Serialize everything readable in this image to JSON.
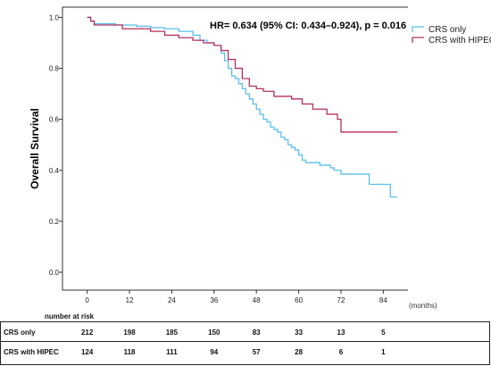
{
  "chart_data": {
    "type": "line",
    "subtype": "kaplan-meier",
    "ylabel": "Overall Survival",
    "x_unit_label": "(months)",
    "xlim": [
      -7,
      91
    ],
    "ylim": [
      -0.07,
      1.04
    ],
    "x_ticks": [
      0,
      12,
      24,
      36,
      48,
      60,
      72,
      84
    ],
    "y_ticks": [
      0.0,
      0.2,
      0.4,
      0.6,
      0.8,
      1.0
    ],
    "y_tick_labels": [
      "0.0",
      "0.2",
      "0.4",
      "0.6",
      "0.8",
      "1.0"
    ],
    "annotation": "HR= 0.634 (95% CI: 0.434–0.924), p = 0.016",
    "legend_position": "top-right",
    "series": [
      {
        "name": "CRS only",
        "color": "#5bc0eb",
        "steps": [
          [
            0,
            1.0
          ],
          [
            1,
            0.985
          ],
          [
            2,
            0.975
          ],
          [
            8,
            0.97
          ],
          [
            14,
            0.965
          ],
          [
            18,
            0.96
          ],
          [
            22,
            0.955
          ],
          [
            26,
            0.945
          ],
          [
            30,
            0.93
          ],
          [
            32,
            0.91
          ],
          [
            34,
            0.9
          ],
          [
            36,
            0.89
          ],
          [
            38,
            0.86
          ],
          [
            39,
            0.83
          ],
          [
            40,
            0.8
          ],
          [
            41,
            0.77
          ],
          [
            42,
            0.76
          ],
          [
            43,
            0.74
          ],
          [
            44,
            0.72
          ],
          [
            45,
            0.7
          ],
          [
            46,
            0.68
          ],
          [
            47,
            0.66
          ],
          [
            48,
            0.64
          ],
          [
            49,
            0.62
          ],
          [
            50,
            0.6
          ],
          [
            51,
            0.59
          ],
          [
            52,
            0.57
          ],
          [
            53,
            0.56
          ],
          [
            54,
            0.55
          ],
          [
            55,
            0.53
          ],
          [
            56,
            0.52
          ],
          [
            57,
            0.5
          ],
          [
            58,
            0.49
          ],
          [
            59,
            0.48
          ],
          [
            60,
            0.46
          ],
          [
            61,
            0.44
          ],
          [
            62,
            0.43
          ],
          [
            66,
            0.42
          ],
          [
            69,
            0.41
          ],
          [
            70,
            0.4
          ],
          [
            72,
            0.385
          ],
          [
            80,
            0.345
          ],
          [
            86,
            0.295
          ],
          [
            88,
            0.295
          ]
        ]
      },
      {
        "name": "CRS with HIPEC",
        "color": "#b5305f",
        "steps": [
          [
            0,
            1.0
          ],
          [
            1,
            0.985
          ],
          [
            2,
            0.97
          ],
          [
            10,
            0.955
          ],
          [
            18,
            0.945
          ],
          [
            22,
            0.93
          ],
          [
            26,
            0.92
          ],
          [
            30,
            0.91
          ],
          [
            33,
            0.9
          ],
          [
            36,
            0.89
          ],
          [
            38,
            0.87
          ],
          [
            40,
            0.835
          ],
          [
            42,
            0.8
          ],
          [
            44,
            0.76
          ],
          [
            46,
            0.73
          ],
          [
            48,
            0.72
          ],
          [
            50,
            0.71
          ],
          [
            53,
            0.69
          ],
          [
            58,
            0.68
          ],
          [
            61,
            0.66
          ],
          [
            64,
            0.64
          ],
          [
            68,
            0.62
          ],
          [
            71,
            0.6
          ],
          [
            72,
            0.55
          ],
          [
            88,
            0.55
          ]
        ]
      }
    ]
  },
  "risk_table": {
    "title": "number at risk",
    "rows": [
      {
        "group": "CRS only",
        "values": [
          "212",
          "198",
          "185",
          "150",
          "83",
          "33",
          "13",
          "5"
        ]
      },
      {
        "group": "CRS with HIPEC",
        "values": [
          "124",
          "118",
          "111",
          "94",
          "57",
          "28",
          "6",
          "1"
        ]
      }
    ]
  }
}
